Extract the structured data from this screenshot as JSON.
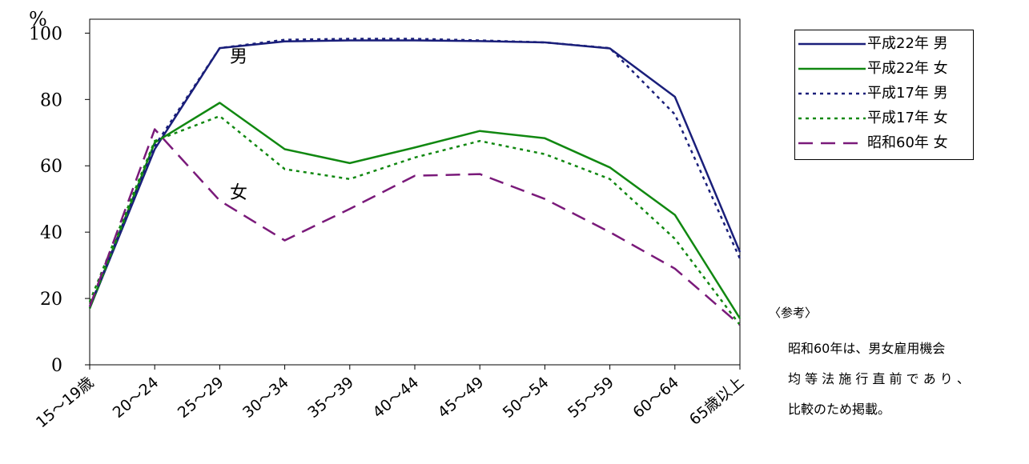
{
  "chart_data": {
    "type": "line",
    "ylabel": "%",
    "ylim": [
      0,
      100
    ],
    "yticks": [
      "0",
      "20",
      "40",
      "60",
      "80",
      "100"
    ],
    "categories": [
      "15～19歳",
      "20～24",
      "25～29",
      "30～34",
      "35～39",
      "40～44",
      "45～49",
      "50～54",
      "55～59",
      "60～64",
      "65歳以上"
    ],
    "series": [
      {
        "name": "平成22年  男",
        "color": "#1a1f7a",
        "style": "solid",
        "values": [
          17,
          65,
          95.5,
          97.5,
          97.8,
          97.8,
          97.6,
          97.2,
          95.4,
          80.8,
          34
        ]
      },
      {
        "name": "平成22年  女",
        "color": "#118811",
        "style": "solid",
        "values": [
          17,
          67,
          79,
          65,
          60.8,
          65.5,
          70.5,
          68.3,
          59.5,
          45.2,
          14
        ]
      },
      {
        "name": "平成17年  男",
        "color": "#1a1f7a",
        "style": "dotted",
        "values": [
          17.5,
          66,
          95.5,
          98,
          98.3,
          98.3,
          97.8,
          97.2,
          95.5,
          75.5,
          32
        ]
      },
      {
        "name": "平成17年  女",
        "color": "#118811",
        "style": "dotted",
        "values": [
          19,
          67.5,
          75,
          59,
          56,
          62.5,
          67.5,
          63.5,
          56,
          38,
          12
        ]
      },
      {
        "name": "昭和60年  女",
        "color": "#7a1a7a",
        "style": "dashed",
        "values": [
          17.5,
          71,
          49.5,
          37.5,
          47,
          57,
          57.5,
          50,
          40,
          29,
          12
        ]
      }
    ],
    "annotations": [
      "男",
      "女"
    ],
    "grid": false,
    "legend": "top-right"
  },
  "note": {
    "title": "〈参考〉",
    "lines": [
      "昭和60年は、男女雇用機会",
      "均 等 法 施 行 直 前 で あ り 、",
      "比較のため掲載。"
    ]
  }
}
